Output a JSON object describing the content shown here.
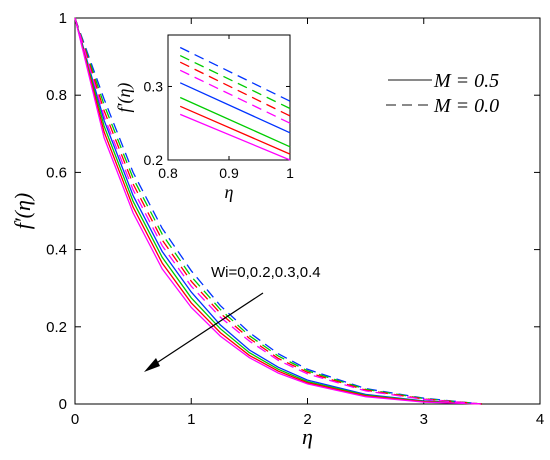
{
  "chart_data": [
    {
      "type": "line",
      "xlabel": "η",
      "ylabel": "f′(η)",
      "xlim": [
        0,
        4
      ],
      "ylim": [
        0,
        1
      ],
      "xticks": [
        "0",
        "1",
        "2",
        "3",
        "4"
      ],
      "yticks": [
        "0",
        "0.2",
        "0.4",
        "0.6",
        "0.8",
        "1"
      ],
      "grid": false,
      "legend": {
        "position": "top-right",
        "entries": [
          {
            "label": "M = 0.5",
            "style": "solid"
          },
          {
            "label": "M = 0.0",
            "style": "dashed"
          }
        ]
      },
      "annotation": "Wi=0,0.2,0.3,0.4",
      "series": [
        {
          "style": "solid",
          "color": "#0033ff",
          "x": [
            0,
            0.25,
            0.5,
            0.75,
            1.0,
            1.25,
            1.5,
            1.75,
            2.0,
            2.5,
            3.0,
            3.5
          ],
          "values": [
            1.0,
            0.735,
            0.54,
            0.395,
            0.29,
            0.205,
            0.14,
            0.095,
            0.062,
            0.025,
            0.008,
            0.0
          ]
        },
        {
          "style": "solid",
          "color": "#00cc00",
          "x": [
            0,
            0.25,
            0.5,
            0.75,
            1.0,
            1.25,
            1.5,
            1.75,
            2.0,
            2.5,
            3.0,
            3.5
          ],
          "values": [
            1.0,
            0.72,
            0.525,
            0.38,
            0.275,
            0.195,
            0.133,
            0.09,
            0.058,
            0.023,
            0.007,
            0.0
          ]
        },
        {
          "style": "solid",
          "color": "#ff0000",
          "x": [
            0,
            0.25,
            0.5,
            0.75,
            1.0,
            1.25,
            1.5,
            1.75,
            2.0,
            2.5,
            3.0,
            3.5
          ],
          "values": [
            1.0,
            0.705,
            0.51,
            0.365,
            0.262,
            0.185,
            0.126,
            0.085,
            0.055,
            0.021,
            0.006,
            0.0
          ]
        },
        {
          "style": "solid",
          "color": "#ff00ff",
          "x": [
            0,
            0.25,
            0.5,
            0.75,
            1.0,
            1.25,
            1.5,
            1.75,
            2.0,
            2.5,
            3.0,
            3.5
          ],
          "values": [
            1.0,
            0.69,
            0.495,
            0.35,
            0.25,
            0.176,
            0.12,
            0.08,
            0.052,
            0.019,
            0.005,
            0.0
          ]
        },
        {
          "style": "dashed",
          "color": "#0033ff",
          "x": [
            0,
            0.25,
            0.5,
            0.75,
            1.0,
            1.25,
            1.5,
            1.75,
            2.0,
            2.5,
            3.0,
            3.5
          ],
          "values": [
            1.0,
            0.79,
            0.6,
            0.455,
            0.345,
            0.255,
            0.185,
            0.13,
            0.09,
            0.04,
            0.015,
            0.0
          ]
        },
        {
          "style": "dashed",
          "color": "#00cc00",
          "x": [
            0,
            0.25,
            0.5,
            0.75,
            1.0,
            1.25,
            1.5,
            1.75,
            2.0,
            2.5,
            3.0,
            3.5
          ],
          "values": [
            1.0,
            0.775,
            0.585,
            0.44,
            0.33,
            0.245,
            0.177,
            0.124,
            0.086,
            0.038,
            0.014,
            0.0
          ]
        },
        {
          "style": "dashed",
          "color": "#ff0000",
          "x": [
            0,
            0.25,
            0.5,
            0.75,
            1.0,
            1.25,
            1.5,
            1.75,
            2.0,
            2.5,
            3.0,
            3.5
          ],
          "values": [
            1.0,
            0.76,
            0.57,
            0.425,
            0.318,
            0.235,
            0.17,
            0.118,
            0.082,
            0.036,
            0.013,
            0.0
          ]
        },
        {
          "style": "dashed",
          "color": "#ff00ff",
          "x": [
            0,
            0.25,
            0.5,
            0.75,
            1.0,
            1.25,
            1.5,
            1.75,
            2.0,
            2.5,
            3.0,
            3.5
          ],
          "values": [
            1.0,
            0.745,
            0.555,
            0.41,
            0.305,
            0.225,
            0.163,
            0.113,
            0.078,
            0.034,
            0.012,
            0.0
          ]
        }
      ]
    },
    {
      "type": "line",
      "role": "inset",
      "xlabel": "η",
      "ylabel": "f′(η)",
      "xlim": [
        0.8,
        1.0
      ],
      "ylim": [
        0.2,
        0.37
      ],
      "xticks": [
        "0.8",
        "0.9",
        "1"
      ],
      "yticks": [
        "0.2",
        "0.3"
      ],
      "series": [
        {
          "style": "dashed",
          "color": "#0033ff",
          "x": [
            0.82,
            1.0
          ],
          "values": [
            0.353,
            0.28
          ]
        },
        {
          "style": "dashed",
          "color": "#00cc00",
          "x": [
            0.82,
            1.0
          ],
          "values": [
            0.342,
            0.27
          ]
        },
        {
          "style": "dashed",
          "color": "#ff0000",
          "x": [
            0.82,
            1.0
          ],
          "values": [
            0.333,
            0.26
          ]
        },
        {
          "style": "dashed",
          "color": "#ff00ff",
          "x": [
            0.82,
            1.0
          ],
          "values": [
            0.322,
            0.25
          ]
        },
        {
          "style": "solid",
          "color": "#0033ff",
          "x": [
            0.82,
            1.0
          ],
          "values": [
            0.305,
            0.237
          ]
        },
        {
          "style": "solid",
          "color": "#00cc00",
          "x": [
            0.82,
            1.0
          ],
          "values": [
            0.285,
            0.218
          ]
        },
        {
          "style": "solid",
          "color": "#ff0000",
          "x": [
            0.82,
            1.0
          ],
          "values": [
            0.273,
            0.208
          ]
        },
        {
          "style": "solid",
          "color": "#ff00ff",
          "x": [
            0.82,
            1.0
          ],
          "values": [
            0.262,
            0.2
          ]
        }
      ]
    }
  ]
}
